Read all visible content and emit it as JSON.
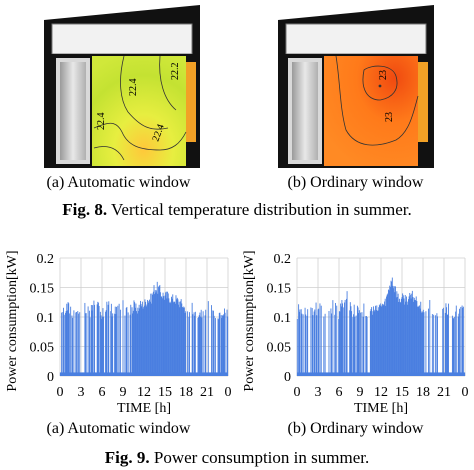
{
  "figure8": {
    "caption_label": "Fig. 8.",
    "caption_text": " Vertical temperature distribution in summer.",
    "panels": [
      {
        "caption": "(a) Automatic window",
        "contour_labels": [
          "22.4",
          "22.2",
          "22.4",
          "22.4"
        ],
        "colors": {
          "warm": "#d8ee3c",
          "hot": "#ffcc33",
          "cool": "#b8e030"
        }
      },
      {
        "caption": "(b) Ordinary window",
        "contour_labels": [
          "23",
          "23"
        ],
        "colors": {
          "base": "#ff7a1a",
          "hot": "#f04a10"
        }
      }
    ]
  },
  "figure9": {
    "caption_label": "Fig. 9.",
    "caption_text": " Power consumption in summer.",
    "panels": [
      {
        "caption": "(a) Automatic window"
      },
      {
        "caption": "(b) Ordinary window"
      }
    ]
  },
  "chart_data": [
    {
      "type": "area",
      "ylabel": "Power consumption[kW]",
      "xlabel": "TIME [h]",
      "xticks": [
        "0",
        "3",
        "6",
        "9",
        "12",
        "15",
        "18",
        "21",
        "0"
      ],
      "yticks": [
        "0",
        "0.05",
        "0.1",
        "0.15",
        "0.2"
      ],
      "xlim": [
        0,
        24
      ],
      "ylim": [
        0,
        0.2
      ],
      "color": "#4a7fe0",
      "series": [
        {
          "x": [
            0,
            1,
            2,
            3,
            4,
            5,
            6,
            7,
            8,
            9,
            10,
            10.5,
            11,
            11.5,
            12,
            12.5,
            13,
            13.5,
            14,
            14.5,
            15,
            15.5,
            16,
            16.5,
            17,
            17.5,
            18,
            19,
            20,
            21,
            22,
            23,
            24
          ],
          "y": [
            0.12,
            0.13,
            0.12,
            0.13,
            0.12,
            0.13,
            0.12,
            0.13,
            0.12,
            0.13,
            0.12,
            0.13,
            0.12,
            0.13,
            0.13,
            0.14,
            0.14,
            0.16,
            0.16,
            0.15,
            0.145,
            0.145,
            0.14,
            0.14,
            0.135,
            0.13,
            0.12,
            0.13,
            0.12,
            0.13,
            0.12,
            0.12,
            0.12
          ]
        }
      ]
    },
    {
      "type": "area",
      "ylabel": "Power consumption[kW]",
      "xlabel": "TIME [h]",
      "xticks": [
        "0",
        "3",
        "6",
        "9",
        "12",
        "15",
        "18",
        "21",
        "0"
      ],
      "yticks": [
        "0",
        "0.05",
        "0.1",
        "0.15",
        "0.2"
      ],
      "xlim": [
        0,
        24
      ],
      "ylim": [
        0,
        0.2
      ],
      "color": "#4a7fe0",
      "series": [
        {
          "x": [
            0,
            1,
            2,
            3,
            4,
            5,
            6,
            7,
            8,
            9,
            10,
            10.5,
            11,
            11.5,
            12,
            12.5,
            13,
            13.5,
            14,
            14.5,
            15,
            15.5,
            16,
            16.5,
            17,
            17.5,
            18,
            19,
            20,
            21,
            22,
            23,
            24
          ],
          "y": [
            0.12,
            0.13,
            0.12,
            0.13,
            0.12,
            0.13,
            0.12,
            0.15,
            0.12,
            0.13,
            0.12,
            0.12,
            0.12,
            0.12,
            0.13,
            0.13,
            0.15,
            0.18,
            0.16,
            0.14,
            0.14,
            0.14,
            0.14,
            0.145,
            0.14,
            0.13,
            0.12,
            0.13,
            0.12,
            0.13,
            0.12,
            0.12,
            0.12
          ]
        }
      ]
    }
  ]
}
